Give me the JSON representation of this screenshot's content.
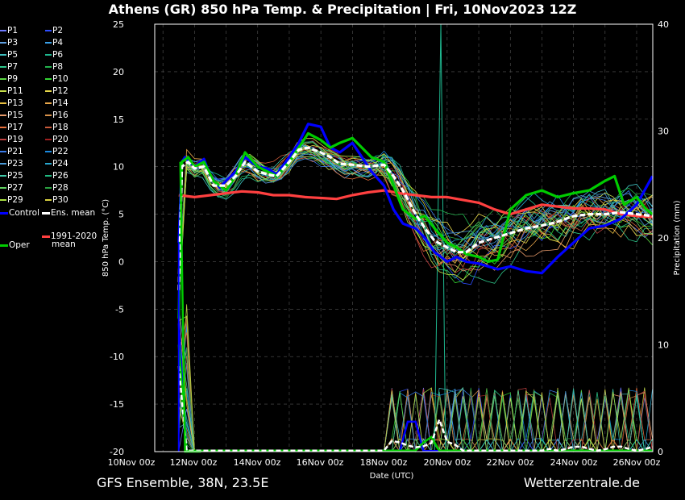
{
  "title": "Athens  (GR)  850 hPa Temp. & Precipitation | Fri, 10Nov2023 12Z",
  "footer": {
    "left": "GFS Ensemble, 38N, 23.5E",
    "right": "Wetterzentrale.de"
  },
  "colors": {
    "background": "#000000",
    "grid": "#555555",
    "control": "#0000ff",
    "ens_mean": "#ffffff",
    "oper": "#00cc00",
    "climate_mean": "#ff4040"
  },
  "legend": {
    "members": [
      {
        "label": "P1",
        "color": "#6e7bff"
      },
      {
        "label": "P2",
        "color": "#2d4dff"
      },
      {
        "label": "P3",
        "color": "#5f9fe0"
      },
      {
        "label": "P4",
        "color": "#3aa0e8"
      },
      {
        "label": "P5",
        "color": "#3fc0c0"
      },
      {
        "label": "P6",
        "color": "#1fb890"
      },
      {
        "label": "P7",
        "color": "#2ec78b"
      },
      {
        "label": "P8",
        "color": "#22b14c"
      },
      {
        "label": "P9",
        "color": "#5ad641"
      },
      {
        "label": "P10",
        "color": "#33d433"
      },
      {
        "label": "P11",
        "color": "#c8e04a"
      },
      {
        "label": "P12",
        "color": "#e8d84a"
      },
      {
        "label": "P13",
        "color": "#e8c040"
      },
      {
        "label": "P14",
        "color": "#e8a64a"
      },
      {
        "label": "P15",
        "color": "#e89a6a"
      },
      {
        "label": "P16",
        "color": "#d8924a"
      },
      {
        "label": "P17",
        "color": "#e86f3a"
      },
      {
        "label": "P18",
        "color": "#c85a3a"
      },
      {
        "label": "P19",
        "color": "#c04040"
      },
      {
        "label": "P20",
        "color": "#a02020"
      },
      {
        "label": "P21",
        "color": "#3a7ae8"
      },
      {
        "label": "P22",
        "color": "#1a8ae0"
      },
      {
        "label": "P23",
        "color": "#4a9ad8"
      },
      {
        "label": "P24",
        "color": "#28a8d0"
      },
      {
        "label": "P25",
        "color": "#40c8a8"
      },
      {
        "label": "P26",
        "color": "#20b880"
      },
      {
        "label": "P27",
        "color": "#60d060"
      },
      {
        "label": "P28",
        "color": "#2aa040"
      },
      {
        "label": "P29",
        "color": "#a8e040"
      },
      {
        "label": "P30",
        "color": "#d8d040"
      }
    ],
    "control": "Control",
    "ens_mean": "Ens. mean",
    "climate_mean_line1": "1991-2020",
    "climate_mean_line2": "mean",
    "oper": "Oper"
  },
  "chart_data": {
    "type": "line",
    "title": "Athens  (GR)  850 hPa Temp. & Precipitation | Fri, 10Nov2023 12Z",
    "xlabel": "Date (UTC)",
    "ylabel": "850 hPa Temp. (°C)",
    "y2label": "Precipitation (mm)",
    "ylim": [
      -20,
      25
    ],
    "y2lim": [
      0,
      40
    ],
    "grid": true,
    "legend_position": "left",
    "x_ticks": [
      "10Nov 00z",
      "12Nov 00z",
      "14Nov 00z",
      "16Nov 00z",
      "18Nov 00z",
      "20Nov 00z",
      "22Nov 00z",
      "24Nov 00z",
      "26Nov 00z"
    ],
    "y_ticks": [
      25,
      20,
      15,
      10,
      5,
      0,
      -5,
      -10,
      -15,
      -20
    ],
    "y2_ticks": [
      40,
      30,
      20,
      10,
      0
    ],
    "x_days_range": [
      0,
      16.5
    ],
    "series": [
      {
        "name": "Control",
        "days": [
          1.5,
          1.6,
          1.7,
          2.0,
          2.3,
          2.5,
          2.8,
          3.0,
          3.3,
          3.6,
          4.0,
          4.3,
          4.6,
          5.0,
          5.3,
          5.6,
          6.0,
          6.3,
          6.6,
          7.0,
          7.3,
          7.6,
          8.0,
          8.3,
          8.6,
          9.0,
          9.3,
          9.6,
          10.0,
          10.3,
          10.6,
          11.0,
          11.3,
          11.6,
          12.0,
          12.5,
          13.0,
          13.5,
          14.0,
          14.5,
          15.0,
          15.5,
          16.0,
          16.5
        ],
        "temp": [
          2.0,
          10.5,
          11.0,
          10.0,
          10.8,
          9.0,
          7.8,
          8.5,
          9.5,
          11.0,
          10.0,
          9.8,
          9.2,
          11.0,
          12.5,
          14.5,
          14.2,
          12.0,
          11.5,
          12.5,
          11.0,
          9.5,
          8.0,
          5.5,
          4.0,
          3.5,
          2.5,
          1.0,
          0.0,
          0.5,
          0.0,
          -0.2,
          -0.5,
          -0.8,
          -0.5,
          -1.0,
          -1.2,
          0.5,
          2.0,
          3.5,
          3.8,
          4.5,
          6.0,
          9.0
        ]
      },
      {
        "name": "Ens. mean",
        "days": [
          1.5,
          1.6,
          1.8,
          2.0,
          2.3,
          2.6,
          3.0,
          3.3,
          3.6,
          4.0,
          4.3,
          4.6,
          5.0,
          5.3,
          5.6,
          6.0,
          6.3,
          6.6,
          7.0,
          7.5,
          8.0,
          8.3,
          8.6,
          9.0,
          9.3,
          9.6,
          10.0,
          10.3,
          10.6,
          11.0,
          11.5,
          12.0,
          12.5,
          13.0,
          13.5,
          14.0,
          14.5,
          15.0,
          15.5,
          16.0,
          16.5
        ],
        "temp": [
          -3.0,
          10.0,
          10.5,
          9.8,
          10.0,
          8.0,
          8.0,
          9.0,
          10.5,
          9.5,
          9.2,
          9.0,
          10.5,
          11.8,
          12.0,
          11.5,
          11.0,
          10.3,
          10.2,
          10.0,
          10.2,
          9.0,
          7.5,
          5.0,
          3.5,
          2.2,
          1.5,
          1.0,
          1.0,
          2.0,
          2.5,
          3.0,
          3.5,
          3.8,
          4.2,
          4.8,
          5.0,
          5.0,
          5.2,
          5.0,
          4.8
        ]
      },
      {
        "name": "Oper",
        "days": [
          1.5,
          1.6,
          1.8,
          2.0,
          2.3,
          2.6,
          3.0,
          3.3,
          3.6,
          4.0,
          4.3,
          4.6,
          5.0,
          5.3,
          5.6,
          6.0,
          6.3,
          6.6,
          7.0,
          7.3,
          7.6,
          8.0,
          8.3,
          8.6,
          9.0,
          9.3,
          9.6,
          10.0,
          10.3,
          10.6,
          11.0,
          11.3,
          11.6,
          12.0,
          12.5,
          13.0,
          13.5,
          14.0,
          14.5,
          15.0,
          15.3,
          15.6,
          16.0,
          16.3,
          16.5
        ],
        "temp": [
          -6.0,
          10.5,
          11.0,
          10.0,
          10.5,
          8.5,
          7.5,
          9.0,
          11.5,
          10.0,
          9.5,
          9.0,
          10.5,
          12.0,
          13.5,
          12.8,
          12.0,
          12.5,
          13.0,
          12.0,
          11.0,
          10.5,
          8.0,
          5.5,
          4.5,
          4.8,
          3.5,
          2.0,
          1.5,
          0.8,
          0.5,
          0.0,
          0.2,
          5.5,
          7.0,
          7.5,
          6.8,
          7.2,
          7.5,
          8.5,
          9.0,
          6.0,
          6.8,
          5.5,
          5.0
        ]
      },
      {
        "name": "1991-2020 mean",
        "days": [
          1.5,
          2.0,
          2.5,
          3.0,
          3.5,
          4.0,
          4.5,
          5.0,
          5.5,
          6.0,
          6.5,
          7.0,
          7.5,
          8.0,
          8.5,
          9.0,
          9.5,
          10.0,
          10.5,
          11.0,
          11.5,
          12.0,
          12.5,
          13.0,
          13.5,
          14.0,
          14.5,
          15.0,
          15.5,
          16.0,
          16.5
        ],
        "temp": [
          7.0,
          6.8,
          7.0,
          7.2,
          7.4,
          7.3,
          7.0,
          7.0,
          6.8,
          6.7,
          6.6,
          7.0,
          7.3,
          7.5,
          7.2,
          7.0,
          6.8,
          6.8,
          6.5,
          6.2,
          5.5,
          5.0,
          5.5,
          6.0,
          5.8,
          5.6,
          5.6,
          5.5,
          5.0,
          4.8,
          4.7
        ]
      }
    ]
  }
}
